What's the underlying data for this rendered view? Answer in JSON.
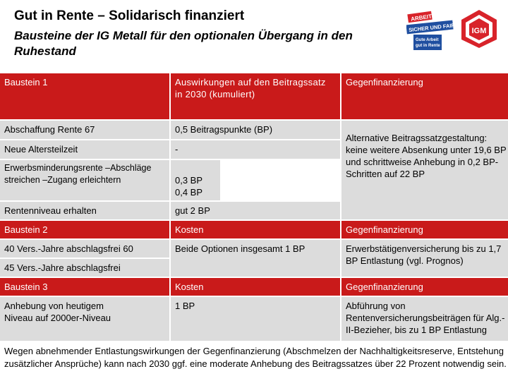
{
  "header": {
    "title": "Gut in Rente – Solidarisch finanziert",
    "subtitle": "Bausteine der IG Metall für den optionalen Übergang in den Ruhestand",
    "logo_arbeit": {
      "line1": "ARBEIT",
      "line2": "SICHER UND FAIR!",
      "line3": "Gute Arbeit",
      "line4": "gut in Rente",
      "colors": {
        "red": "#d8232a",
        "blue": "#1f4fa0"
      }
    },
    "logo_ig": {
      "text": "IGM",
      "color": "#d8232a"
    }
  },
  "section1": {
    "headers": [
      "Baustein 1",
      "Auswirkungen auf den Beitragssatz in 2030 (kumuliert)",
      "Gegenfinanzierung"
    ],
    "rows": [
      {
        "name": "Abschaffung Rente 67",
        "effect": "0,5 Beitragspunkte (BP)"
      },
      {
        "name": "Neue Altersteilzeit",
        "effect": "-"
      },
      {
        "name": "Erwerbsminderungsrente –Abschläge streichen –Zugang erleichtern",
        "effect": "0,3 BP 0,4 BP"
      },
      {
        "name": "Rentenniveau erhalten",
        "effect": "gut 2 BP"
      }
    ],
    "financing": "Alternative Beitragssatzgestaltung: keine weitere Absenkung unter 19,6 BP und schrittweise Anhebung in 0,2 BP-Schritten auf 22 BP"
  },
  "section2": {
    "headers": [
      "Baustein 2",
      "Kosten",
      "Gegenfinanzierung"
    ],
    "rows": [
      {
        "name": "40 Vers.-Jahre abschlagsfrei 60"
      },
      {
        "name": "45 Vers.-Jahre abschlagsfrei"
      }
    ],
    "cost": "Beide Optionen insgesamt 1 BP",
    "financing": "Erwerbstätigenversicherung bis zu 1,7 BP Entlastung (vgl. Prognos)"
  },
  "section3": {
    "headers": [
      "Baustein 3",
      "Kosten",
      "Gegenfinanzierung"
    ],
    "name": "Anhebung von heutigem Niveau auf 2000er-Niveau",
    "cost": "1 BP",
    "financing": "Abführung von Rentenversicherungsbeiträgen für Alg.-II-Bezieher, bis zu 1 BP Entlastung"
  },
  "footer": "Wegen abnehmender Entlastungswirkungen der Gegenfinanzierung (Abschmelzen der Nachhaltigkeitsreserve, Entstehung zusätzlicher Ansprüche) kann nach 2030 ggf. eine moderate Anhebung des Beitragssatzes über 22 Prozent notwendig sein."
}
